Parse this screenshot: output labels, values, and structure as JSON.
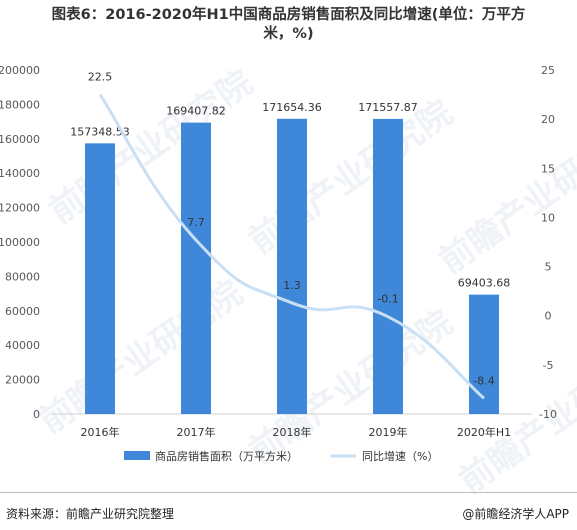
{
  "title_line1": "图表6：2016-2020年H1中国商品房销售面积及同比增速(单位：万平方",
  "title_line2": "米，%)",
  "source": "资料来源：前瞻产业研究院整理",
  "brand": "@前瞻经济学人APP",
  "watermark": "前瞻产业研究院",
  "colors": {
    "bar": "#3f87d9",
    "line": "#c9e0f4",
    "axis": "#d0d0d0",
    "text": "#595959"
  },
  "chart_data": {
    "type": "bar+line",
    "categories": [
      "2016年",
      "2017年",
      "2018年",
      "2019年",
      "2020年H1"
    ],
    "series": [
      {
        "name": "商品房销售面积（万平方米）",
        "type": "bar",
        "axis": "left",
        "values": [
          157348.53,
          169407.82,
          171654.36,
          171557.87,
          69403.68
        ],
        "labels": [
          "157348.53",
          "169407.82",
          "171654.36",
          "171557.87",
          "69403.68"
        ]
      },
      {
        "name": "同比增速（%）",
        "type": "line",
        "axis": "right",
        "values": [
          22.5,
          7.7,
          1.3,
          -0.1,
          -8.4
        ],
        "labels": [
          "22.5",
          "7.7",
          "1.3",
          "-0.1",
          "-8.4"
        ]
      }
    ],
    "y_left": {
      "min": 0,
      "max": 200000,
      "ticks": [
        "0",
        "20000",
        "40000",
        "60000",
        "80000",
        "100000",
        "120000",
        "140000",
        "160000",
        "180000",
        "200000"
      ]
    },
    "y_right": {
      "min": -10,
      "max": 25,
      "ticks": [
        "-10",
        "-5",
        "0",
        "5",
        "10",
        "15",
        "20",
        "25"
      ]
    },
    "legend_position": "bottom"
  }
}
